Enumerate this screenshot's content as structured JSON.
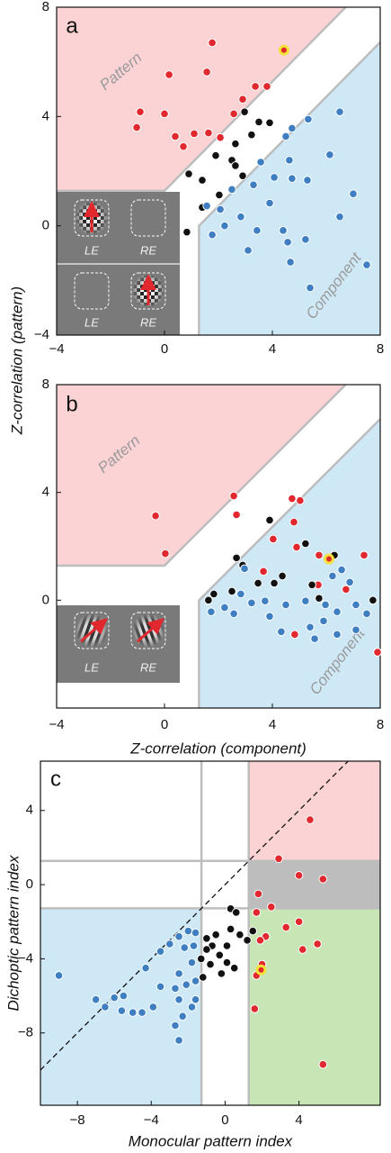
{
  "chart_data": [
    {
      "type": "scatter",
      "panel_label": "a",
      "region_labels": [
        "Pattern",
        "Component"
      ],
      "inset_labels": [
        "LE",
        "RE",
        "LE",
        "RE"
      ],
      "boundary": 1.28,
      "xlim": [
        -4,
        8
      ],
      "ylim": [
        -4,
        8
      ],
      "xticks": [
        {
          "value": -4,
          "label": "−4"
        },
        0,
        4,
        8
      ],
      "yticks": [
        {
          "value": -4,
          "label": "−4"
        },
        0,
        4,
        8
      ],
      "series": [
        {
          "color": "#e0282e",
          "x": [
            1.77,
            1.57,
            0.17,
            -0.9,
            0,
            -1.03,
            0.4,
            0.7,
            1.1,
            1.63,
            2.07,
            2.9,
            3.37,
            3.8,
            2.57
          ],
          "values": [
            6.7,
            5.63,
            5.53,
            4.17,
            4.1,
            3.6,
            3.27,
            2.9,
            3.37,
            3.4,
            3.23,
            4.63,
            5.1,
            5.1,
            4.1
          ]
        },
        {
          "color": "#111111",
          "x": [
            2.97,
            3.5,
            3.9,
            3.23,
            2.63,
            1.9,
            2.5,
            2.63,
            0.9,
            1.4,
            2.03,
            1.4,
            0.83,
            2.9
          ],
          "values": [
            4.17,
            3.8,
            3.77,
            3.33,
            3.0,
            2.57,
            2.4,
            2.2,
            1.9,
            1.67,
            1.13,
            0.67,
            -0.23,
            1.83
          ]
        },
        {
          "color": "#3f7fc1",
          "x": [
            5.33,
            6.5,
            4.73,
            4.5,
            4.63,
            3.57,
            4.73,
            4.07,
            3.3,
            2.5,
            6.13,
            5.3,
            7.0,
            3.9,
            1.57,
            2.07,
            2.83,
            2.23,
            3.43,
            4.4,
            4.57,
            5.23,
            6.5,
            3.1,
            4.67,
            5.4,
            7.5,
            1.77
          ],
          "values": [
            3.9,
            4.17,
            3.57,
            3.27,
            2.4,
            2.33,
            1.73,
            1.77,
            1.5,
            1.33,
            2.6,
            1.67,
            1.17,
            0.83,
            0.73,
            0.6,
            0.33,
            0,
            -0.17,
            -0.17,
            -0.6,
            -0.5,
            0.33,
            -0.9,
            -1.33,
            -2.27,
            -1.43,
            -0.33
          ]
        },
        {
          "color": "#e0282e",
          "halo": "#f4e13a",
          "x": [
            4.43
          ],
          "values": [
            6.43
          ]
        }
      ]
    },
    {
      "type": "scatter",
      "panel_label": "b",
      "region_labels": [
        "Pattern",
        "Component"
      ],
      "inset_labels": [
        "LE",
        "RE"
      ],
      "boundary": 1.28,
      "xlabel": "Z-correlation (component)",
      "ylabel": "Z-correlation (pattern)",
      "xlim": [
        -4,
        8
      ],
      "ylim": [
        -4,
        8
      ],
      "xticks": [
        {
          "value": -4,
          "label": "−4"
        },
        0,
        4,
        8
      ],
      "yticks": [
        0,
        4,
        8
      ],
      "series": [
        {
          "color": "#e0282e",
          "x": [
            -0.33,
            0.03,
            2.57,
            2.67,
            4.73,
            5.03,
            4.8,
            4.03,
            4.9,
            5.73,
            7.4,
            3.67,
            5.7,
            6.73,
            4.83,
            7.9
          ],
          "values": [
            3.13,
            1.73,
            3.87,
            3.17,
            3.77,
            3.7,
            2.9,
            2.27,
            1.97,
            1.67,
            1.67,
            1.07,
            0.57,
            0.4,
            -1.27,
            -1.93
          ]
        },
        {
          "color": "#111111",
          "x": [
            3.9,
            5.23,
            6.3,
            2.67,
            2.9,
            4.37,
            3.47,
            4.07,
            5.47,
            2.5,
            1.63,
            5.73,
            7.73,
            1.83
          ],
          "values": [
            2.97,
            2.1,
            1.67,
            1.57,
            1.3,
            0.9,
            0.63,
            0.63,
            0.57,
            0.33,
            0,
            0.07,
            0,
            0.23
          ]
        },
        {
          "color": "#3f7fc1",
          "x": [
            2.97,
            6.57,
            6.87,
            6.23,
            2.83,
            3.23,
            3.73,
            4.5,
            5.23,
            5.97,
            6.4,
            7.1,
            7.5,
            2.23,
            2.57,
            3.9,
            1.73,
            5.4,
            5.9,
            6.4,
            5.57,
            7.1,
            4.33
          ],
          "values": [
            1.17,
            1.13,
            0.67,
            0.9,
            0.23,
            -0.1,
            -0.03,
            -0.17,
            -0.03,
            -0.17,
            -0.43,
            -0.17,
            -0.5,
            -0.27,
            -0.5,
            -0.6,
            -0.43,
            -1.0,
            -0.77,
            -1.27,
            -1.43,
            -1.1,
            -1.17
          ]
        },
        {
          "color": "#e0282e",
          "halo": "#f4e13a",
          "x": [
            6.1
          ],
          "values": [
            1.53
          ]
        }
      ]
    },
    {
      "type": "quadrant-scatter",
      "panel_label": "c",
      "boundary": 1.28,
      "diagonal": true,
      "xlabel": "Monocular pattern index",
      "ylabel": "Dichoptic pattern index",
      "xlim": [
        -10,
        8.4
      ],
      "ylim": [
        -11.9,
        6.66
      ],
      "xticks": [
        {
          "value": -8,
          "label": "−8"
        },
        {
          "value": -4,
          "label": "−4"
        },
        0,
        4
      ],
      "yticks": [
        {
          "value": -8,
          "label": "−8"
        },
        {
          "value": -4,
          "label": "−4"
        },
        0,
        4
      ],
      "region_colors": [
        "#fbd3d5",
        "#bdbdbd",
        "#c8e6b5",
        "#cfe8f6"
      ],
      "series": [
        {
          "color": "#e0282e",
          "x": [
            4.6,
            2.9,
            4.0,
            5.3,
            1.8,
            1.7,
            2.2,
            3.3,
            4.0,
            5.0,
            4.2,
            2.0,
            1.7,
            1.6,
            5.3,
            2.5,
            1.9
          ],
          "values": [
            3.5,
            1.4,
            0.5,
            0.3,
            -0.5,
            -1.5,
            -2.8,
            -2.3,
            -2.0,
            -3.2,
            -3.5,
            -4.3,
            -4.9,
            -6.7,
            -9.7,
            -1.2,
            -3.0
          ]
        },
        {
          "color": "#111111",
          "x": [
            0.3,
            0.6,
            0.3,
            -0.5,
            -1.0,
            0.8,
            1.2,
            1.5,
            0.1,
            -0.7,
            -0.3,
            0.1,
            -0.8,
            -0.2,
            -1.3,
            -1.2,
            -1.0,
            0.5
          ],
          "values": [
            -1.3,
            -1.5,
            -2.4,
            -2.7,
            -2.9,
            -2.7,
            -3.0,
            -2.5,
            -3.3,
            -3.3,
            -3.8,
            -4.2,
            -4.3,
            -4.8,
            -4.0,
            -5.0,
            -3.5,
            -4.5
          ]
        },
        {
          "color": "#3f7fc1",
          "x": [
            -2.0,
            -2.5,
            -3.0,
            -3.5,
            -2.2,
            -1.6,
            -1.7,
            -4.3,
            -2.5,
            -1.8,
            -1.6,
            -2.1,
            -3.5,
            -2.7,
            -1.6,
            -2.5,
            -3.9,
            -5.5,
            -6.0,
            -5.6,
            -6.5,
            -7.0,
            -5.0,
            -4.5,
            -9.0,
            -2.3,
            -2.5,
            -1.8,
            -2.7
          ],
          "values": [
            -2.5,
            -2.8,
            -3.2,
            -3.6,
            -3.4,
            -2.6,
            -3.3,
            -4.5,
            -4.8,
            -4.2,
            -5.2,
            -5.4,
            -5.5,
            -5.6,
            -6.2,
            -6.2,
            -6.6,
            -6.0,
            -6.1,
            -6.8,
            -6.6,
            -6.2,
            -6.9,
            -6.9,
            -4.9,
            -7.1,
            -8.4,
            -6.6,
            -7.6
          ]
        },
        {
          "color": "#e0282e",
          "halo": "#f4e13a",
          "x": [
            1.95
          ],
          "values": [
            -4.6
          ]
        }
      ]
    }
  ]
}
